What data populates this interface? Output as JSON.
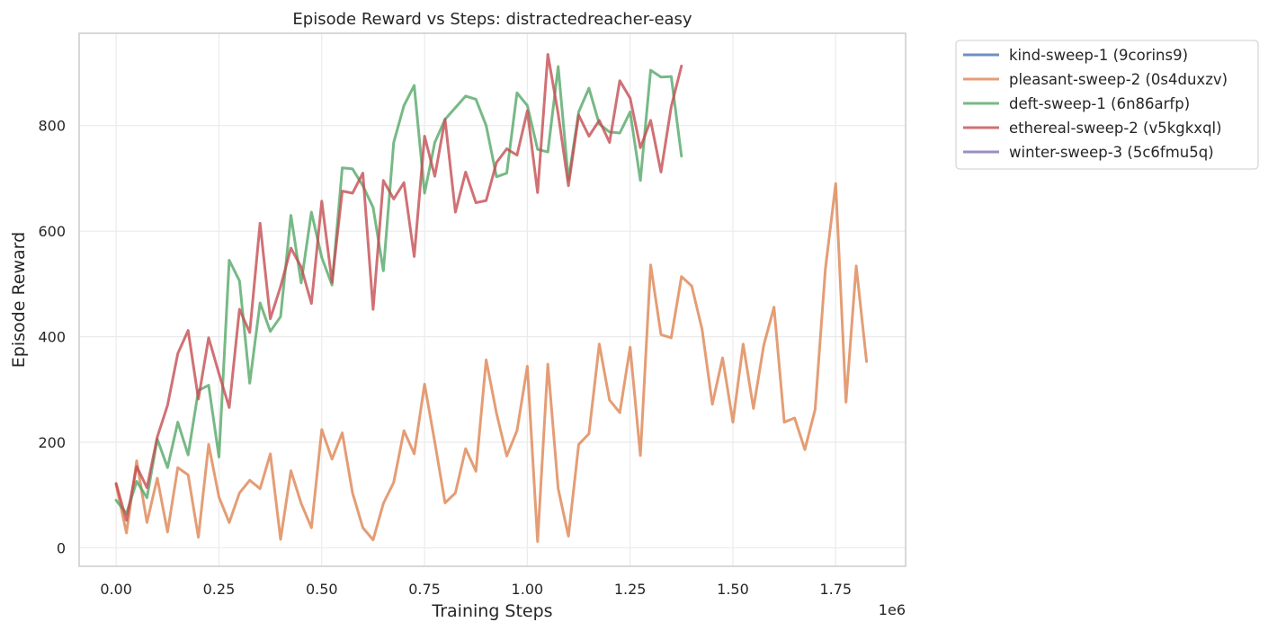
{
  "chart_data": {
    "type": "line",
    "title": "Episode Reward vs Steps: distractedreacher-easy",
    "xlabel": "Training Steps",
    "ylabel": "Episode Reward",
    "x_offset_label": "1e6",
    "xlim": [
      -0.09,
      1.92
    ],
    "ylim": [
      -35,
      975
    ],
    "x_ticks": [
      0.0,
      0.25,
      0.5,
      0.75,
      1.0,
      1.25,
      1.5,
      1.75
    ],
    "x_tick_labels": [
      "0.00",
      "0.25",
      "0.50",
      "0.75",
      "1.00",
      "1.25",
      "1.50",
      "1.75"
    ],
    "y_ticks": [
      0,
      200,
      400,
      600,
      800
    ],
    "y_tick_labels": [
      "0",
      "200",
      "400",
      "600",
      "800"
    ],
    "grid": true,
    "legend_position": "outside-top-right",
    "series": [
      {
        "name": "kind-sweep-1 (9corins9)",
        "color": "#4c72b0",
        "x": [],
        "y": []
      },
      {
        "name": "pleasant-sweep-2 (0s4duxzv)",
        "color": "#dd8452",
        "x": [
          0.0,
          0.025,
          0.05,
          0.075,
          0.1,
          0.125,
          0.15,
          0.175,
          0.2,
          0.225,
          0.25,
          0.275,
          0.3,
          0.325,
          0.35,
          0.375,
          0.4,
          0.425,
          0.45,
          0.475,
          0.5,
          0.525,
          0.55,
          0.575,
          0.6,
          0.625,
          0.65,
          0.675,
          0.7,
          0.725,
          0.75,
          0.775,
          0.8,
          0.825,
          0.85,
          0.875,
          0.9,
          0.925,
          0.95,
          0.975,
          1.0,
          1.025,
          1.05,
          1.075,
          1.1,
          1.125,
          1.15,
          1.175,
          1.2,
          1.225,
          1.25,
          1.275,
          1.3,
          1.325,
          1.35,
          1.375,
          1.4,
          1.425,
          1.45,
          1.475,
          1.5,
          1.525,
          1.55,
          1.575,
          1.6,
          1.625,
          1.65,
          1.675,
          1.7,
          1.725,
          1.75,
          1.775,
          1.8,
          1.825
        ],
        "y": [
          120,
          28,
          165,
          48,
          132,
          30,
          152,
          138,
          20,
          196,
          96,
          48,
          104,
          128,
          112,
          178,
          16,
          146,
          84,
          38,
          224,
          168,
          218,
          104,
          38,
          15,
          84,
          124,
          222,
          178,
          310,
          200,
          85,
          104,
          188,
          145,
          356,
          255,
          174,
          222,
          344,
          12,
          348,
          112,
          22,
          196,
          216,
          386,
          280,
          256,
          380,
          175,
          536,
          404,
          398,
          514,
          496,
          414,
          272,
          360,
          238,
          386,
          264,
          384,
          456,
          238,
          246,
          186,
          262,
          528,
          690,
          276,
          534,
          353
        ]
      },
      {
        "name": "deft-sweep-1 (6n86arfp)",
        "color": "#55a868",
        "x": [
          0.0,
          0.025,
          0.05,
          0.075,
          0.1,
          0.125,
          0.15,
          0.175,
          0.2,
          0.225,
          0.25,
          0.275,
          0.3,
          0.325,
          0.35,
          0.375,
          0.4,
          0.425,
          0.45,
          0.475,
          0.5,
          0.525,
          0.55,
          0.575,
          0.6,
          0.625,
          0.65,
          0.675,
          0.7,
          0.725,
          0.75,
          0.775,
          0.8,
          0.825,
          0.85,
          0.875,
          0.9,
          0.925,
          0.95,
          0.975,
          1.0,
          1.025,
          1.05,
          1.075,
          1.1,
          1.125,
          1.15,
          1.175,
          1.2,
          1.225,
          1.25,
          1.275,
          1.3,
          1.325,
          1.35,
          1.375
        ],
        "y": [
          90,
          65,
          126,
          95,
          206,
          152,
          238,
          176,
          298,
          308,
          172,
          545,
          506,
          312,
          464,
          410,
          438,
          630,
          502,
          636,
          550,
          498,
          720,
          718,
          686,
          645,
          525,
          768,
          838,
          876,
          672,
          768,
          812,
          834,
          856,
          850,
          800,
          703,
          710,
          862,
          838,
          755,
          750,
          912,
          697,
          826,
          871,
          803,
          788,
          786,
          826,
          696,
          905,
          892,
          893,
          742
        ]
      },
      {
        "name": "ethereal-sweep-2 (v5kgkxql)",
        "color": "#c44e52",
        "x": [
          0.0,
          0.025,
          0.05,
          0.075,
          0.1,
          0.125,
          0.15,
          0.175,
          0.2,
          0.225,
          0.25,
          0.275,
          0.3,
          0.325,
          0.35,
          0.375,
          0.4,
          0.425,
          0.45,
          0.475,
          0.5,
          0.525,
          0.55,
          0.575,
          0.6,
          0.625,
          0.65,
          0.675,
          0.7,
          0.725,
          0.75,
          0.775,
          0.8,
          0.825,
          0.85,
          0.875,
          0.9,
          0.925,
          0.95,
          0.975,
          1.0,
          1.025,
          1.05,
          1.075,
          1.1,
          1.125,
          1.15,
          1.175,
          1.2,
          1.225,
          1.25,
          1.275,
          1.3,
          1.325,
          1.35,
          1.375
        ],
        "y": [
          122,
          52,
          154,
          114,
          210,
          270,
          368,
          412,
          282,
          398,
          330,
          266,
          452,
          408,
          615,
          434,
          495,
          568,
          532,
          463,
          657,
          503,
          676,
          672,
          710,
          452,
          696,
          661,
          692,
          552,
          780,
          704,
          812,
          636,
          712,
          654,
          658,
          730,
          756,
          744,
          828,
          673,
          935,
          822,
          686,
          820,
          780,
          810,
          768,
          885,
          852,
          758,
          810,
          712,
          836,
          913
        ]
      },
      {
        "name": "winter-sweep-3 (5c6fmu5q)",
        "color": "#8172b3",
        "x": [],
        "y": []
      }
    ]
  }
}
